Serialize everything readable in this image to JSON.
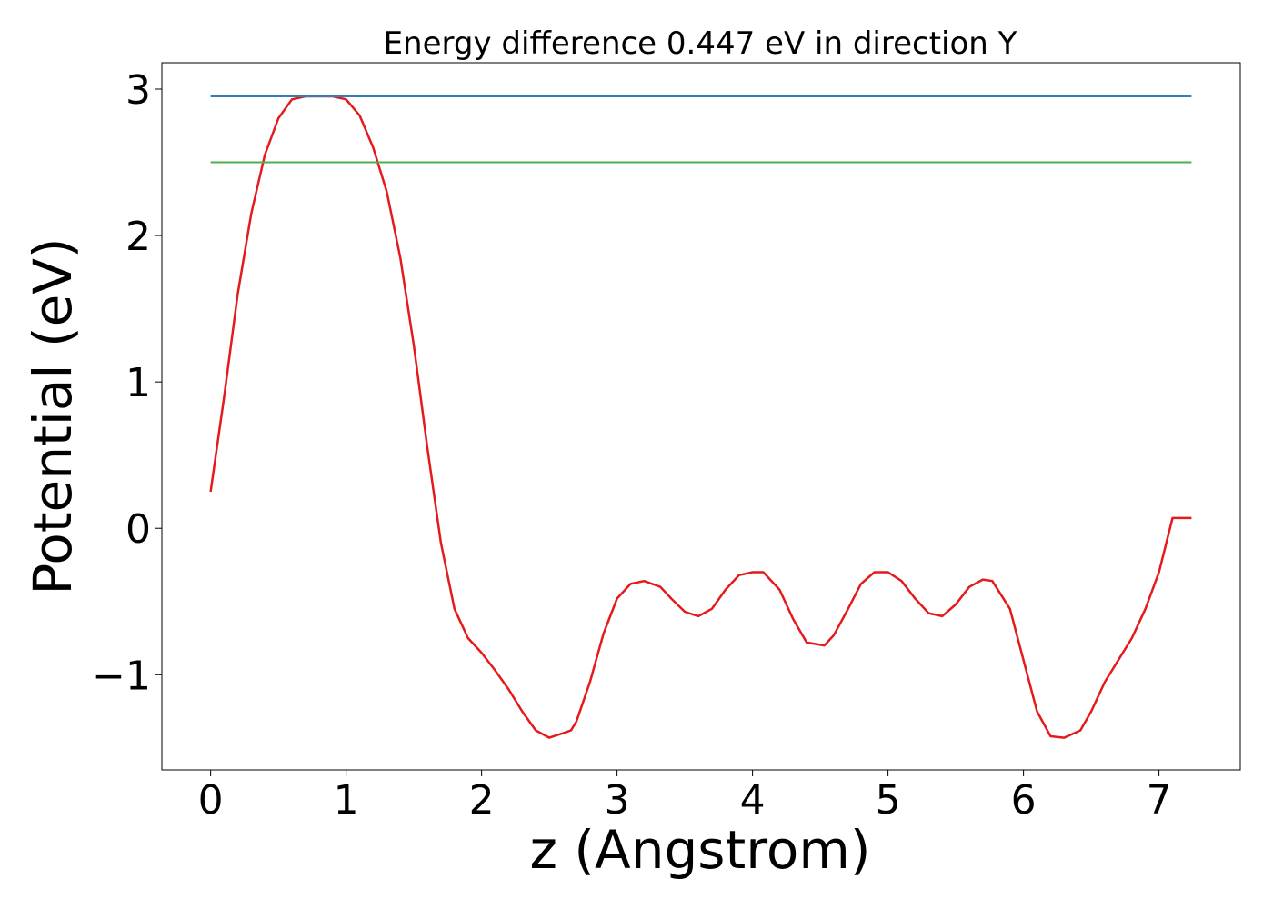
{
  "chart_data": {
    "type": "line",
    "title": "Energy difference 0.447 eV in direction Y",
    "xlabel": "z (Angstrom)",
    "ylabel": "Potential (eV)",
    "xlim": [
      -0.36,
      7.6
    ],
    "ylim": [
      -1.65,
      3.18
    ],
    "x_ticks": [
      0,
      1,
      2,
      3,
      4,
      5,
      6,
      7
    ],
    "x_tick_labels": [
      "0",
      "1",
      "2",
      "3",
      "4",
      "5",
      "6",
      "7"
    ],
    "y_ticks": [
      -1,
      0,
      1,
      2,
      3
    ],
    "y_tick_labels": [
      "−1",
      "0",
      "1",
      "2",
      "3"
    ],
    "grid": false,
    "series": [
      {
        "color": "#e41a1c",
        "x": [
          0.0,
          0.1,
          0.2,
          0.3,
          0.4,
          0.5,
          0.6,
          0.7,
          0.8,
          0.9,
          1.0,
          1.1,
          1.2,
          1.3,
          1.4,
          1.5,
          1.6,
          1.7,
          1.8,
          1.9,
          2.0,
          2.1,
          2.2,
          2.3,
          2.4,
          2.5,
          2.6,
          2.66,
          2.7,
          2.8,
          2.9,
          3.0,
          3.1,
          3.2,
          3.32,
          3.4,
          3.5,
          3.6,
          3.7,
          3.8,
          3.9,
          4.0,
          4.08,
          4.2,
          4.3,
          4.4,
          4.53,
          4.6,
          4.7,
          4.8,
          4.9,
          5.0,
          5.1,
          5.2,
          5.3,
          5.4,
          5.5,
          5.6,
          5.7,
          5.77,
          5.9,
          6.0,
          6.1,
          6.2,
          6.3,
          6.42,
          6.5,
          6.6,
          6.7,
          6.8,
          6.9,
          7.0,
          7.1,
          7.24
        ],
        "y": [
          0.25,
          0.9,
          1.6,
          2.15,
          2.55,
          2.8,
          2.93,
          2.95,
          2.95,
          2.95,
          2.93,
          2.82,
          2.6,
          2.3,
          1.85,
          1.25,
          0.55,
          -0.1,
          -0.55,
          -0.75,
          -0.85,
          -0.97,
          -1.1,
          -1.25,
          -1.38,
          -1.43,
          -1.4,
          -1.38,
          -1.32,
          -1.05,
          -0.72,
          -0.48,
          -0.38,
          -0.36,
          -0.4,
          -0.48,
          -0.57,
          -0.6,
          -0.55,
          -0.42,
          -0.32,
          -0.3,
          -0.3,
          -0.42,
          -0.62,
          -0.78,
          -0.8,
          -0.73,
          -0.56,
          -0.38,
          -0.3,
          -0.3,
          -0.36,
          -0.48,
          -0.58,
          -0.6,
          -0.52,
          -0.4,
          -0.35,
          -0.36,
          -0.55,
          -0.9,
          -1.25,
          -1.42,
          -1.43,
          -1.38,
          -1.25,
          -1.05,
          -0.9,
          -0.75,
          -0.55,
          -0.3,
          0.07,
          0.07
        ]
      },
      {
        "color": "#377eb8",
        "x": [
          0.0,
          7.24
        ],
        "y": [
          2.95,
          2.95
        ]
      },
      {
        "color": "#4daf4a",
        "x": [
          0.0,
          7.24
        ],
        "y": [
          2.5,
          2.5
        ]
      }
    ]
  }
}
